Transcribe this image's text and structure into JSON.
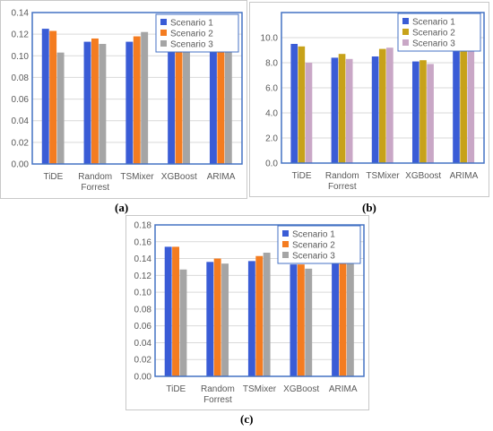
{
  "captions": [
    "(a)",
    "(b)",
    "(c)"
  ],
  "colors": {
    "plot_border": "#4472c4",
    "grid": "#d9d9d9",
    "axis_text": "#595959"
  },
  "chart_data": [
    {
      "type": "bar",
      "title": "",
      "xlabel": "",
      "ylabel": "",
      "categories": [
        "TiDE",
        "Random Forrest",
        "TSMixer",
        "XGBoost",
        "ARIMA"
      ],
      "ylim": [
        0,
        0.14
      ],
      "yticks": [
        0,
        0.02,
        0.04,
        0.06,
        0.08,
        0.1,
        0.12,
        0.14
      ],
      "ytick_labels": [
        "0.00",
        "0.02",
        "0.04",
        "0.06",
        "0.08",
        "0.10",
        "0.12",
        "0.14"
      ],
      "grid": true,
      "legend": "top-right",
      "series": [
        {
          "name": "Scenario 1",
          "color": "#3a5cd6",
          "values": [
            0.125,
            0.113,
            0.113,
            0.108,
            0.131
          ]
        },
        {
          "name": "Scenario 2",
          "color": "#f47c20",
          "values": [
            0.123,
            0.116,
            0.118,
            0.108,
            0.13
          ]
        },
        {
          "name": "Scenario 3",
          "color": "#a5a5a5",
          "values": [
            0.103,
            0.111,
            0.122,
            0.104,
            0.13
          ]
        }
      ]
    },
    {
      "type": "bar",
      "title": "",
      "xlabel": "",
      "ylabel": "",
      "categories": [
        "TiDE",
        "Random Forrest",
        "TSMixer",
        "XGBoost",
        "ARIMA"
      ],
      "ylim": [
        0,
        12
      ],
      "yticks": [
        0,
        2,
        4,
        6,
        8,
        10
      ],
      "ytick_labels": [
        "0.0",
        "2.0",
        "4.0",
        "6.0",
        "8.0",
        "10.0"
      ],
      "grid": true,
      "legend": "top-right",
      "series": [
        {
          "name": "Scenario 1",
          "color": "#3a5cd6",
          "values": [
            9.5,
            8.4,
            8.5,
            8.1,
            10.5
          ]
        },
        {
          "name": "Scenario 2",
          "color": "#c7a21a",
          "values": [
            9.3,
            8.7,
            9.1,
            8.2,
            10.8
          ]
        },
        {
          "name": "Scenario 3",
          "color": "#c9a7c6",
          "values": [
            8.0,
            8.3,
            9.2,
            7.9,
            10.8
          ]
        }
      ]
    },
    {
      "type": "bar",
      "title": "",
      "xlabel": "",
      "ylabel": "",
      "categories": [
        "TiDE",
        "Random Forrest",
        "TSMixer",
        "XGBoost",
        "ARIMA"
      ],
      "ylim": [
        0,
        0.18
      ],
      "yticks": [
        0,
        0.02,
        0.04,
        0.06,
        0.08,
        0.1,
        0.12,
        0.14,
        0.16,
        0.18
      ],
      "ytick_labels": [
        "0.00",
        "0.02",
        "0.04",
        "0.06",
        "0.08",
        "0.10",
        "0.12",
        "0.14",
        "0.16",
        "0.18"
      ],
      "grid": true,
      "legend": "top-right",
      "series": [
        {
          "name": "Scenario 1",
          "color": "#3a5cd6",
          "values": [
            0.154,
            0.136,
            0.137,
            0.133,
            0.151
          ]
        },
        {
          "name": "Scenario 2",
          "color": "#f47c20",
          "values": [
            0.154,
            0.14,
            0.143,
            0.133,
            0.155
          ]
        },
        {
          "name": "Scenario 3",
          "color": "#a5a5a5",
          "values": [
            0.127,
            0.134,
            0.147,
            0.128,
            0.155
          ]
        }
      ]
    }
  ]
}
